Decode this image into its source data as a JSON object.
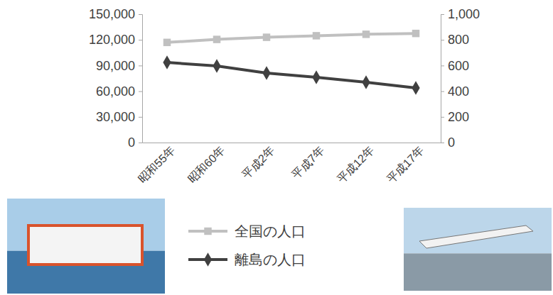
{
  "chart_data": {
    "type": "line",
    "categories": [
      "昭和55年",
      "昭和60年",
      "平成2年",
      "平成7年",
      "平成12年",
      "平成17年"
    ],
    "series": [
      {
        "name": "全国の人口",
        "color": "#c0c0c0",
        "marker": "square",
        "values": [
          117000,
          120500,
          123000,
          124800,
          126500,
          127500
        ]
      },
      {
        "name": "離島の人口",
        "color": "#404040",
        "marker": "diamond",
        "axis": "y2",
        "values": [
          624,
          597,
          541,
          508,
          470,
          425
        ]
      }
    ],
    "ylim": [
      0,
      150000
    ],
    "yticks": [
      0,
      {
        "value": 30000,
        "label": "30,000"
      },
      {
        "value": 60000,
        "label": "60,000"
      },
      {
        "value": 90000,
        "label": "90,000"
      },
      {
        "value": 120000,
        "label": "120,000"
      },
      {
        "value": 150000,
        "label": "150,000"
      }
    ],
    "y2lim": [
      0,
      1000
    ],
    "y2ticks": [
      0,
      200,
      400,
      600,
      800,
      {
        "value": 1000,
        "label": "1,000"
      }
    ],
    "grid": false,
    "legend": "bottom"
  }
}
